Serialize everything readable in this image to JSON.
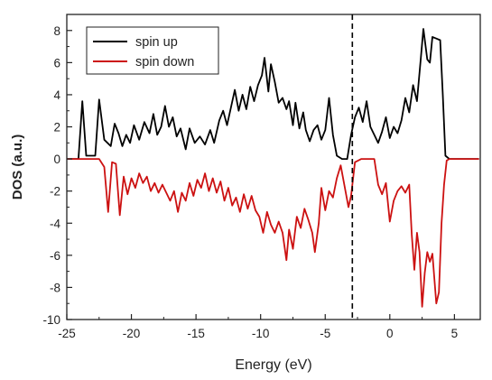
{
  "chart_data": {
    "type": "line",
    "title": "",
    "xlabel": "Energy (eV)",
    "ylabel": "DOS (a.u.)",
    "xlim": [
      -25,
      7
    ],
    "ylim": [
      -10,
      9
    ],
    "x_ticks": [
      -25,
      -20,
      -15,
      -10,
      -5,
      0,
      5
    ],
    "y_ticks": [
      -10,
      -8,
      -6,
      -4,
      -2,
      0,
      2,
      4,
      6,
      8
    ],
    "fermi_level": -2.9,
    "legend_position": "top-left",
    "grid": false,
    "series": [
      {
        "name": "spin up",
        "color": "#000000",
        "points": [
          [
            -25.0,
            0
          ],
          [
            -24.1,
            0
          ],
          [
            -23.8,
            3.6
          ],
          [
            -23.5,
            0.2
          ],
          [
            -22.8,
            0.2
          ],
          [
            -22.5,
            3.7
          ],
          [
            -22.1,
            1.2
          ],
          [
            -21.6,
            0.8
          ],
          [
            -21.3,
            2.2
          ],
          [
            -21.0,
            1.6
          ],
          [
            -20.7,
            0.8
          ],
          [
            -20.4,
            1.5
          ],
          [
            -20.1,
            1.0
          ],
          [
            -19.8,
            2.1
          ],
          [
            -19.4,
            1.2
          ],
          [
            -19.0,
            2.3
          ],
          [
            -18.6,
            1.6
          ],
          [
            -18.3,
            2.8
          ],
          [
            -18.0,
            1.5
          ],
          [
            -17.7,
            2.0
          ],
          [
            -17.4,
            3.3
          ],
          [
            -17.1,
            2.0
          ],
          [
            -16.8,
            2.6
          ],
          [
            -16.5,
            1.4
          ],
          [
            -16.2,
            1.9
          ],
          [
            -15.8,
            0.6
          ],
          [
            -15.5,
            1.9
          ],
          [
            -15.1,
            1.0
          ],
          [
            -14.7,
            1.4
          ],
          [
            -14.3,
            0.9
          ],
          [
            -13.9,
            1.8
          ],
          [
            -13.6,
            1.0
          ],
          [
            -13.2,
            2.4
          ],
          [
            -12.9,
            3.0
          ],
          [
            -12.6,
            2.1
          ],
          [
            -12.3,
            3.2
          ],
          [
            -12.0,
            4.3
          ],
          [
            -11.7,
            3.0
          ],
          [
            -11.4,
            4.0
          ],
          [
            -11.1,
            3.1
          ],
          [
            -10.8,
            4.5
          ],
          [
            -10.5,
            3.6
          ],
          [
            -10.2,
            4.6
          ],
          [
            -9.9,
            5.2
          ],
          [
            -9.7,
            6.3
          ],
          [
            -9.4,
            4.2
          ],
          [
            -9.2,
            5.9
          ],
          [
            -8.9,
            4.8
          ],
          [
            -8.6,
            3.5
          ],
          [
            -8.3,
            3.8
          ],
          [
            -8.0,
            3.1
          ],
          [
            -7.8,
            3.6
          ],
          [
            -7.5,
            2.1
          ],
          [
            -7.3,
            3.5
          ],
          [
            -7.0,
            1.9
          ],
          [
            -6.7,
            2.9
          ],
          [
            -6.5,
            1.8
          ],
          [
            -6.2,
            1.1
          ],
          [
            -5.9,
            1.8
          ],
          [
            -5.6,
            2.1
          ],
          [
            -5.3,
            1.2
          ],
          [
            -5.0,
            1.8
          ],
          [
            -4.7,
            3.8
          ],
          [
            -4.4,
            1.5
          ],
          [
            -4.1,
            0.2
          ],
          [
            -3.7,
            0.0
          ],
          [
            -3.3,
            0.0
          ],
          [
            -3.0,
            1.5
          ],
          [
            -2.7,
            2.6
          ],
          [
            -2.4,
            3.2
          ],
          [
            -2.1,
            2.3
          ],
          [
            -1.8,
            3.6
          ],
          [
            -1.5,
            2.0
          ],
          [
            -1.2,
            1.5
          ],
          [
            -0.9,
            1.0
          ],
          [
            -0.6,
            1.7
          ],
          [
            -0.3,
            2.6
          ],
          [
            0.0,
            1.3
          ],
          [
            0.3,
            2.0
          ],
          [
            0.6,
            1.6
          ],
          [
            0.9,
            2.4
          ],
          [
            1.2,
            3.8
          ],
          [
            1.5,
            2.9
          ],
          [
            1.8,
            4.6
          ],
          [
            2.1,
            3.6
          ],
          [
            2.4,
            6.3
          ],
          [
            2.6,
            8.1
          ],
          [
            2.9,
            6.2
          ],
          [
            3.1,
            6.0
          ],
          [
            3.3,
            7.6
          ],
          [
            3.6,
            7.5
          ],
          [
            3.9,
            7.4
          ],
          [
            4.1,
            4.0
          ],
          [
            4.3,
            0.2
          ],
          [
            4.6,
            0.0
          ],
          [
            6.9,
            0.0
          ]
        ]
      },
      {
        "name": "spin down",
        "color": "#cc1111",
        "points": [
          [
            -25.0,
            0
          ],
          [
            -22.5,
            0
          ],
          [
            -22.1,
            -0.5
          ],
          [
            -21.8,
            -3.3
          ],
          [
            -21.5,
            -0.2
          ],
          [
            -21.2,
            -0.3
          ],
          [
            -20.9,
            -3.5
          ],
          [
            -20.6,
            -1.1
          ],
          [
            -20.3,
            -2.2
          ],
          [
            -20.0,
            -1.2
          ],
          [
            -19.7,
            -1.8
          ],
          [
            -19.4,
            -0.9
          ],
          [
            -19.1,
            -1.5
          ],
          [
            -18.8,
            -1.1
          ],
          [
            -18.5,
            -2.0
          ],
          [
            -18.2,
            -1.5
          ],
          [
            -17.9,
            -2.1
          ],
          [
            -17.6,
            -1.6
          ],
          [
            -17.3,
            -2.1
          ],
          [
            -17.0,
            -2.6
          ],
          [
            -16.7,
            -2.0
          ],
          [
            -16.4,
            -3.3
          ],
          [
            -16.1,
            -2.1
          ],
          [
            -15.8,
            -2.6
          ],
          [
            -15.5,
            -1.5
          ],
          [
            -15.2,
            -2.3
          ],
          [
            -14.9,
            -1.3
          ],
          [
            -14.6,
            -1.8
          ],
          [
            -14.3,
            -0.9
          ],
          [
            -14.0,
            -2.0
          ],
          [
            -13.7,
            -1.2
          ],
          [
            -13.4,
            -2.1
          ],
          [
            -13.1,
            -1.4
          ],
          [
            -12.8,
            -2.6
          ],
          [
            -12.5,
            -1.8
          ],
          [
            -12.2,
            -2.9
          ],
          [
            -11.9,
            -2.4
          ],
          [
            -11.6,
            -3.3
          ],
          [
            -11.3,
            -2.2
          ],
          [
            -11.0,
            -3.1
          ],
          [
            -10.7,
            -2.3
          ],
          [
            -10.4,
            -3.2
          ],
          [
            -10.1,
            -3.6
          ],
          [
            -9.8,
            -4.6
          ],
          [
            -9.5,
            -3.3
          ],
          [
            -9.2,
            -4.1
          ],
          [
            -8.9,
            -4.6
          ],
          [
            -8.6,
            -3.9
          ],
          [
            -8.3,
            -4.6
          ],
          [
            -8.0,
            -6.3
          ],
          [
            -7.8,
            -4.4
          ],
          [
            -7.5,
            -5.6
          ],
          [
            -7.2,
            -3.6
          ],
          [
            -6.9,
            -4.3
          ],
          [
            -6.6,
            -3.1
          ],
          [
            -6.3,
            -3.8
          ],
          [
            -6.0,
            -4.6
          ],
          [
            -5.8,
            -5.8
          ],
          [
            -5.5,
            -4.0
          ],
          [
            -5.3,
            -1.8
          ],
          [
            -5.0,
            -3.2
          ],
          [
            -4.7,
            -2.0
          ],
          [
            -4.4,
            -2.4
          ],
          [
            -4.1,
            -1.2
          ],
          [
            -3.8,
            -0.4
          ],
          [
            -3.5,
            -1.7
          ],
          [
            -3.2,
            -3.0
          ],
          [
            -3.0,
            -2.3
          ],
          [
            -2.7,
            -0.2
          ],
          [
            -2.2,
            0.0
          ],
          [
            -1.2,
            0.0
          ],
          [
            -0.9,
            -1.6
          ],
          [
            -0.6,
            -2.2
          ],
          [
            -0.3,
            -1.5
          ],
          [
            0.0,
            -3.9
          ],
          [
            0.3,
            -2.6
          ],
          [
            0.6,
            -2.0
          ],
          [
            0.9,
            -1.7
          ],
          [
            1.2,
            -2.1
          ],
          [
            1.5,
            -1.6
          ],
          [
            1.7,
            -4.7
          ],
          [
            1.9,
            -6.9
          ],
          [
            2.1,
            -4.6
          ],
          [
            2.3,
            -5.8
          ],
          [
            2.5,
            -9.2
          ],
          [
            2.7,
            -7.1
          ],
          [
            2.9,
            -5.8
          ],
          [
            3.1,
            -6.4
          ],
          [
            3.3,
            -5.9
          ],
          [
            3.6,
            -9.0
          ],
          [
            3.8,
            -8.3
          ],
          [
            4.0,
            -4.0
          ],
          [
            4.2,
            -1.6
          ],
          [
            4.4,
            -0.1
          ],
          [
            4.6,
            0.0
          ],
          [
            6.9,
            0.0
          ]
        ]
      }
    ]
  }
}
